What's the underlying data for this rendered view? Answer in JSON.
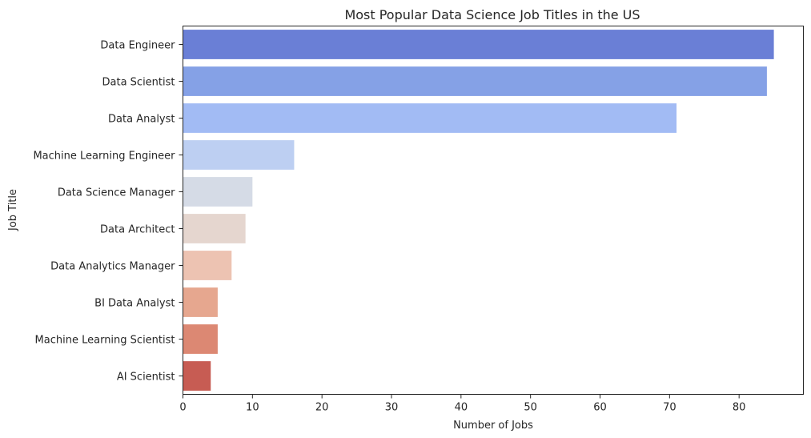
{
  "chart_data": {
    "type": "bar",
    "orientation": "horizontal",
    "title": "Most Popular Data Science Job Titles in the US",
    "xlabel": "Number of Jobs",
    "ylabel": "Job Title",
    "categories": [
      "Data Engineer",
      "Data Scientist",
      "Data Analyst",
      "Machine Learning Engineer",
      "Data Science Manager",
      "Data Architect",
      "Data Analytics Manager",
      "BI Data Analyst",
      "Machine Learning Scientist",
      "AI Scientist"
    ],
    "values": [
      85,
      84,
      71,
      16,
      10,
      9,
      7,
      5,
      5,
      4
    ],
    "colors": [
      "#6a7fd6",
      "#85a1e6",
      "#a2bbf4",
      "#bdcff2",
      "#d5dbe6",
      "#e5d6cf",
      "#edc3b2",
      "#e6a78f",
      "#dc8873",
      "#c75c53"
    ],
    "xlim": [
      0,
      89.25
    ],
    "xticks": [
      0,
      10,
      20,
      30,
      40,
      50,
      60,
      70,
      80
    ],
    "grid": false,
    "legend": "none"
  }
}
